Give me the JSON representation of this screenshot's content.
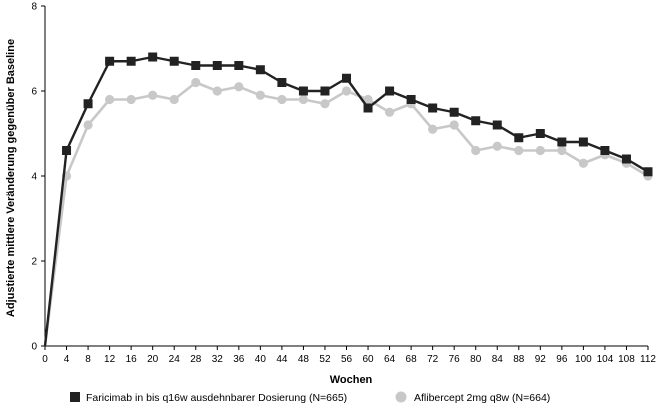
{
  "chart_data": {
    "type": "line",
    "xlabel": "Wochen",
    "ylabel": "Adjustierte mittlere Veränderung gegenüber Baseline",
    "xlim": [
      0,
      112
    ],
    "ylim": [
      0,
      8
    ],
    "x_ticks": [
      0,
      4,
      8,
      12,
      16,
      20,
      24,
      28,
      32,
      36,
      40,
      44,
      48,
      52,
      56,
      60,
      64,
      68,
      72,
      76,
      80,
      84,
      88,
      92,
      96,
      100,
      104,
      108,
      112
    ],
    "y_ticks": [
      0,
      2,
      4,
      6,
      8
    ],
    "grid": false,
    "legend_position": "bottom",
    "x": [
      0,
      4,
      8,
      12,
      16,
      20,
      24,
      28,
      32,
      36,
      40,
      44,
      48,
      52,
      56,
      60,
      64,
      68,
      72,
      76,
      80,
      84,
      88,
      92,
      96,
      100,
      104,
      108,
      112
    ],
    "series": [
      {
        "name": "Faricimab in bis q16w ausdehnbarer Dosierung (N=665)",
        "color": "#222222",
        "marker": "square",
        "values": [
          0,
          4.6,
          5.7,
          6.7,
          6.7,
          6.8,
          6.7,
          6.6,
          6.6,
          6.6,
          6.5,
          6.2,
          6.0,
          6.0,
          6.3,
          5.6,
          6.0,
          5.8,
          5.6,
          5.5,
          5.3,
          5.2,
          4.9,
          5.0,
          4.8,
          4.8,
          4.6,
          4.4,
          4.1
        ]
      },
      {
        "name": "Aflibercept 2mg q8w (N=664)",
        "color": "#c8c8c8",
        "marker": "circle",
        "values": [
          0,
          4.0,
          5.2,
          5.8,
          5.8,
          5.9,
          5.8,
          6.2,
          6.0,
          6.1,
          5.9,
          5.8,
          5.8,
          5.7,
          6.0,
          5.8,
          5.5,
          5.7,
          5.1,
          5.2,
          4.6,
          4.7,
          4.6,
          4.6,
          4.6,
          4.3,
          4.5,
          4.3,
          4.0
        ]
      }
    ]
  }
}
